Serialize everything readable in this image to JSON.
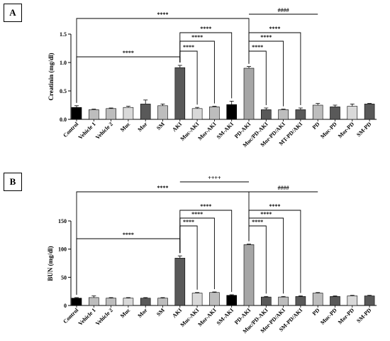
{
  "chart_data": [
    {
      "panel": "A",
      "type": "bar",
      "ylabel": "Creatinin (mg/dl)",
      "ylim": [
        0,
        1.5
      ],
      "yticks": [
        "0.0",
        "0.5",
        "1.0",
        "1.5"
      ],
      "ytick_values": [
        0,
        0.5,
        1.0,
        1.5
      ],
      "categories": [
        "Control",
        "Vehicle 1",
        "Vehicle 2",
        "Muc",
        "Mor",
        "SM",
        "AKI",
        "Muc-AKI",
        "Mor-AKI",
        "SM-AKI",
        "PD-AKI",
        "Muc/PD-AKI",
        "Mor-PD/AKI",
        "MT-PD/AKI",
        "PD",
        "Muc-PD",
        "Mor-PD",
        "SM-PD"
      ],
      "values": [
        0.21,
        0.17,
        0.19,
        0.21,
        0.27,
        0.24,
        0.91,
        0.19,
        0.22,
        0.26,
        0.9,
        0.17,
        0.17,
        0.17,
        0.25,
        0.22,
        0.23,
        0.27
      ],
      "errors": [
        0.03,
        0.01,
        0.01,
        0.02,
        0.07,
        0.03,
        0.04,
        0.02,
        0.01,
        0.06,
        0.03,
        0.03,
        0.01,
        0.03,
        0.03,
        0.03,
        0.04,
        0.01
      ],
      "bar_colors": [
        "#000000",
        "#bdbdbd",
        "#bdbdbd",
        "#d9d9d9",
        "#595959",
        "#bdbdbd",
        "#595959",
        "#d9d9d9",
        "#bdbdbd",
        "#000000",
        "#a6a6a6",
        "#595959",
        "#bdbdbd",
        "#595959",
        "#bdbdbd",
        "#595959",
        "#d9d9d9",
        "#595959"
      ],
      "significance": [
        {
          "from": "Control",
          "to": "PD-AKI",
          "label": "****"
        },
        {
          "from": "PD-AKI",
          "to": "PD",
          "label": "####"
        },
        {
          "from": "AKI",
          "to": "SM-AKI",
          "label": "****"
        },
        {
          "from": "AKI",
          "to": "Mor-AKI",
          "label": "****"
        },
        {
          "from": "AKI",
          "to": "Muc-AKI",
          "label": "****"
        },
        {
          "from": "Control",
          "to": "AKI",
          "label": "****"
        },
        {
          "from": "PD-AKI",
          "to": "MT-PD/AKI",
          "label": "****"
        },
        {
          "from": "PD-AKI",
          "to": "Mor-PD/AKI",
          "label": "****"
        },
        {
          "from": "PD-AKI",
          "to": "Muc/PD-AKI",
          "label": "****"
        }
      ]
    },
    {
      "panel": "B",
      "type": "bar",
      "ylabel": "BUN (mg/dl)",
      "ylim": [
        0,
        150
      ],
      "yticks": [
        "0",
        "50",
        "100",
        "150"
      ],
      "ytick_values": [
        0,
        50,
        100,
        150
      ],
      "categories": [
        "Control",
        "Vehicle 1",
        "Vehicle 2",
        "Muc",
        "Mor",
        "SM",
        "AKI",
        "Muc-AKI",
        "Mor-AKI",
        "SM-AKI",
        "PD-AKI",
        "Muc/PD-AKI",
        "Mor-PD/AKI",
        "SM-PD/AKI",
        "PD",
        "Muc-PD",
        "Mor-PD",
        "SM-PD"
      ],
      "values": [
        13,
        14,
        13,
        13,
        13,
        13,
        84,
        22,
        23,
        18,
        108,
        15,
        15,
        16,
        22,
        16,
        17,
        17
      ],
      "errors": [
        1,
        3,
        1,
        1,
        1,
        1,
        4,
        1,
        1,
        1,
        1,
        1,
        1,
        1,
        1,
        1,
        1,
        1
      ],
      "bar_colors": [
        "#000000",
        "#bdbdbd",
        "#bdbdbd",
        "#d9d9d9",
        "#595959",
        "#bdbdbd",
        "#595959",
        "#d9d9d9",
        "#bdbdbd",
        "#000000",
        "#a6a6a6",
        "#595959",
        "#bdbdbd",
        "#595959",
        "#bdbdbd",
        "#595959",
        "#d9d9d9",
        "#595959"
      ],
      "significance": [
        {
          "from": "AKI",
          "to": "PD-AKI",
          "label": "++++"
        },
        {
          "from": "Control",
          "to": "PD-AKI",
          "label": "****"
        },
        {
          "from": "PD-AKI",
          "to": "PD",
          "label": "####"
        },
        {
          "from": "AKI",
          "to": "SM-AKI",
          "label": "****"
        },
        {
          "from": "AKI",
          "to": "Mor-AKI",
          "label": "****"
        },
        {
          "from": "AKI",
          "to": "Muc-AKI",
          "label": "****"
        },
        {
          "from": "Control",
          "to": "AKI",
          "label": "****"
        },
        {
          "from": "PD-AKI",
          "to": "SM-PD/AKI",
          "label": "****"
        },
        {
          "from": "PD-AKI",
          "to": "Mor-PD/AKI",
          "label": "****"
        },
        {
          "from": "PD-AKI",
          "to": "Muc/PD-AKI",
          "label": "****"
        }
      ]
    }
  ]
}
